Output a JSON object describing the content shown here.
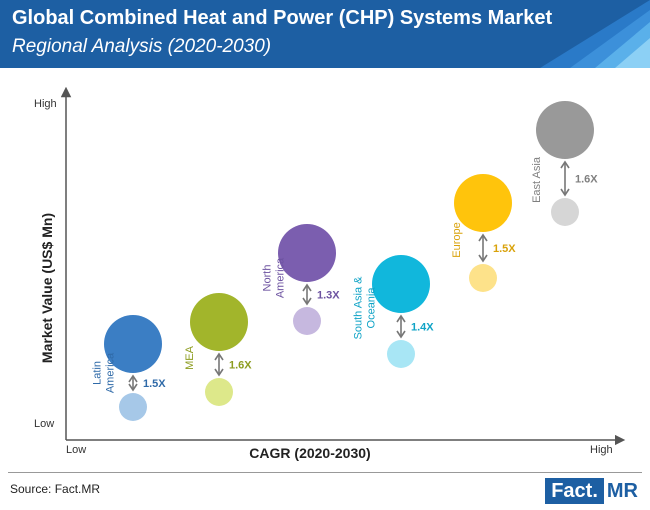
{
  "header": {
    "title": "Global Combined Heat and Power (CHP) Systems Market",
    "subtitle": "Regional Analysis (2020-2030)"
  },
  "chart_data": {
    "type": "bubble",
    "xlabel": "CAGR (2020-2030)",
    "ylabel": "Market Value (US$ Mn)",
    "x_low": "Low",
    "x_high": "High",
    "y_low": "Low",
    "y_high": "High",
    "grid": false,
    "series": [
      {
        "name": "Latin America",
        "label_lines": [
          "Latin",
          "America"
        ],
        "multiplier": "1.5X",
        "color_big": "#3b7ec4",
        "color_small": "#a6c8e8",
        "color_text": "#2f6aa8"
      },
      {
        "name": "MEA",
        "label_lines": [
          "MEA"
        ],
        "multiplier": "1.6X",
        "color_big": "#a2b52b",
        "color_small": "#dde88a",
        "color_text": "#8c9c1e"
      },
      {
        "name": "North America",
        "label_lines": [
          "North",
          "America"
        ],
        "multiplier": "1.3X",
        "color_big": "#7b5eaf",
        "color_small": "#c6b8df",
        "color_text": "#6c52a0"
      },
      {
        "name": "South Asia & Oceania",
        "label_lines": [
          "South Asia &",
          "Oceania"
        ],
        "multiplier": "1.4X",
        "color_big": "#11b7dc",
        "color_small": "#a8e6f5",
        "color_text": "#0fa3c6"
      },
      {
        "name": "Europe",
        "label_lines": [
          "Europe"
        ],
        "multiplier": "1.5X",
        "color_big": "#ffc40c",
        "color_small": "#fde28a",
        "color_text": "#d9a20a"
      },
      {
        "name": "East Asia",
        "label_lines": [
          "East Asia"
        ],
        "multiplier": "1.6X",
        "color_big": "#999999",
        "color_small": "#d6d6d6",
        "color_text": "#7f7f7f"
      }
    ]
  },
  "footer": {
    "source": "Source: Fact.MR",
    "brand_a": "Fact.",
    "brand_b": "MR"
  }
}
